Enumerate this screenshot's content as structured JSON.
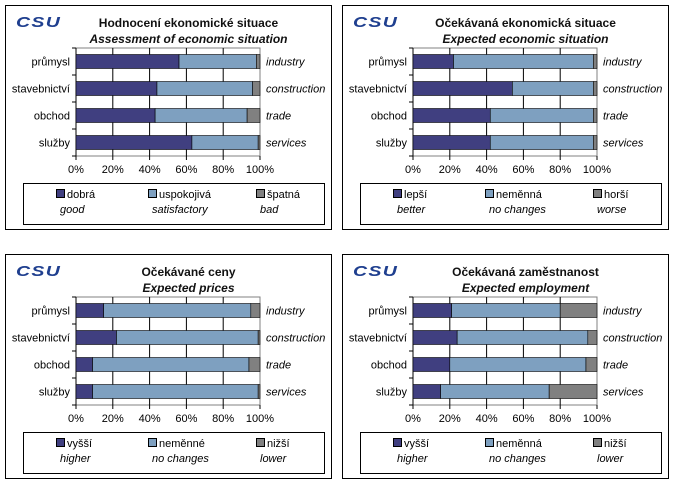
{
  "colors": [
    "#403f80",
    "#7ea0c0",
    "#808080"
  ],
  "logo_text": "CSU",
  "chart_data": [
    {
      "type": "bar",
      "stacked": true,
      "orientation": "horizontal",
      "title": "Hodnocení  ekonomické situace",
      "subtitle": "Assessment of economic situation",
      "categories": [
        "průmysl",
        "stavebnictví",
        "obchod",
        "služby"
      ],
      "categories_en": [
        "industry",
        "construction",
        "trade",
        "services"
      ],
      "xticks": [
        "0%",
        "20%",
        "40%",
        "60%",
        "80%",
        "100%"
      ],
      "xlim": [
        0,
        100
      ],
      "series": [
        {
          "name": "dobrá",
          "name_en": "good",
          "values": [
            56,
            44,
            43,
            63
          ]
        },
        {
          "name": "uspokojivá",
          "name_en": "satisfactory",
          "values": [
            42,
            52,
            50,
            36
          ]
        },
        {
          "name": "špatná",
          "name_en": "bad",
          "values": [
            2,
            4,
            7,
            1
          ]
        }
      ]
    },
    {
      "type": "bar",
      "stacked": true,
      "orientation": "horizontal",
      "title": "Očekávaná  ekonomická situace",
      "subtitle": "Expected economic situation",
      "categories": [
        "průmysl",
        "stavebnictví",
        "obchod",
        "služby"
      ],
      "categories_en": [
        "industry",
        "construction",
        "trade",
        "services"
      ],
      "xticks": [
        "0%",
        "20%",
        "40%",
        "60%",
        "80%",
        "100%"
      ],
      "xlim": [
        0,
        100
      ],
      "series": [
        {
          "name": "lepší",
          "name_en": "better",
          "values": [
            22,
            54,
            42,
            42
          ]
        },
        {
          "name": "neměnná",
          "name_en": "no changes",
          "values": [
            76,
            44,
            56,
            56
          ]
        },
        {
          "name": "horší",
          "name_en": "worse",
          "values": [
            2,
            2,
            2,
            2
          ]
        }
      ]
    },
    {
      "type": "bar",
      "stacked": true,
      "orientation": "horizontal",
      "title": "Očekávané ceny",
      "subtitle": "Expected prices",
      "categories": [
        "průmysl",
        "stavebnictví",
        "obchod",
        "služby"
      ],
      "categories_en": [
        "industry",
        "construction",
        "trade",
        "services"
      ],
      "xticks": [
        "0%",
        "20%",
        "40%",
        "60%",
        "80%",
        "100%"
      ],
      "xlim": [
        0,
        100
      ],
      "series": [
        {
          "name": "vyšší",
          "name_en": "higher",
          "values": [
            15,
            22,
            9,
            9
          ]
        },
        {
          "name": "neměnné",
          "name_en": "no changes",
          "values": [
            80,
            77,
            85,
            90
          ]
        },
        {
          "name": "nižší",
          "name_en": "lower",
          "values": [
            5,
            1,
            6,
            1
          ]
        }
      ]
    },
    {
      "type": "bar",
      "stacked": true,
      "orientation": "horizontal",
      "title": "Očekávaná zaměstnanost",
      "subtitle": "Expected employment",
      "categories": [
        "průmysl",
        "stavebnictví",
        "obchod",
        "služby"
      ],
      "categories_en": [
        "industry",
        "construction",
        "trade",
        "services"
      ],
      "xticks": [
        "0%",
        "20%",
        "40%",
        "60%",
        "80%",
        "100%"
      ],
      "xlim": [
        0,
        100
      ],
      "series": [
        {
          "name": "vyšší",
          "name_en": "higher",
          "values": [
            21,
            24,
            20,
            15
          ]
        },
        {
          "name": "neměnná",
          "name_en": "no changes",
          "values": [
            59,
            71,
            74,
            59
          ]
        },
        {
          "name": "nižší",
          "name_en": "lower",
          "values": [
            20,
            5,
            6,
            26
          ]
        }
      ]
    }
  ]
}
